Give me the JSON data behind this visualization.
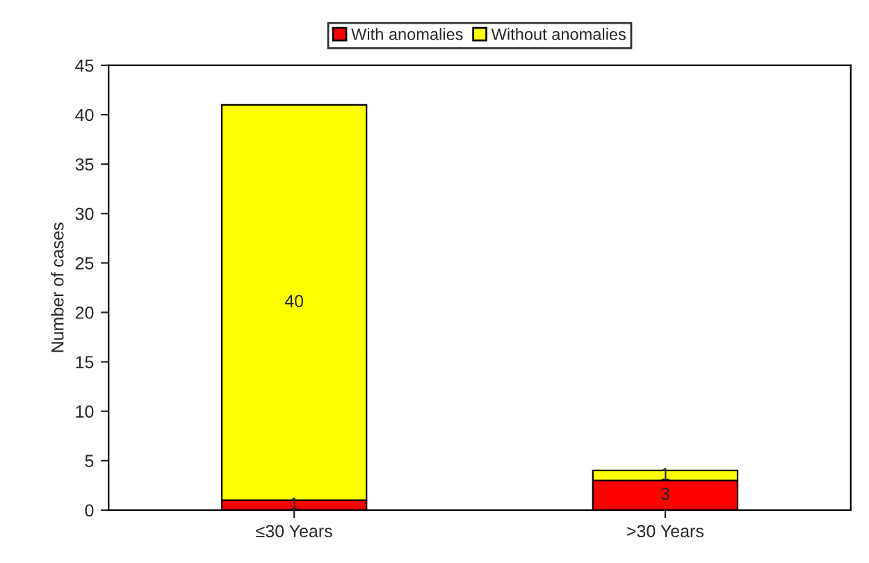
{
  "chart_data": {
    "type": "bar",
    "stacked": true,
    "ylabel": "Number of cases",
    "categories": [
      "≤30 Years",
      ">30 Years"
    ],
    "series": [
      {
        "name": "With anomalies",
        "color": "#ff0000",
        "values": [
          1,
          3
        ]
      },
      {
        "name": "Without anomalies",
        "color": "#ffff00",
        "values": [
          40,
          1
        ]
      }
    ],
    "ylim": [
      0,
      45
    ],
    "yticks": [
      0,
      5,
      10,
      15,
      20,
      25,
      30,
      35,
      40,
      45
    ],
    "data_labels": true,
    "legend": "top",
    "grid": false
  }
}
